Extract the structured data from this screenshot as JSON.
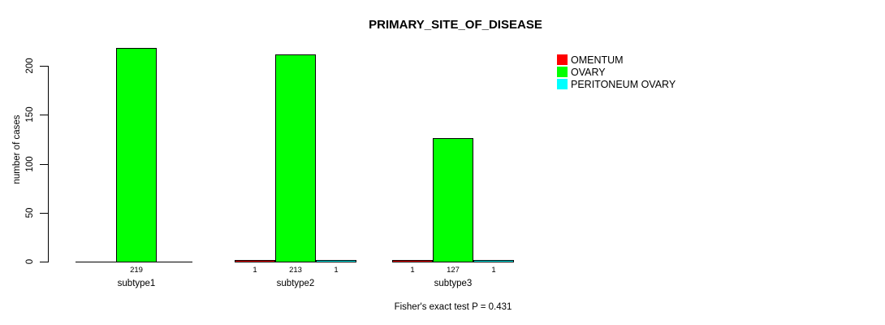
{
  "chart_data": {
    "type": "bar",
    "title": "PRIMARY_SITE_OF_DISEASE",
    "xlabel": "",
    "ylabel": "number of cases",
    "ylim": [
      0,
      200
    ],
    "yticks": [
      0,
      50,
      100,
      150,
      200
    ],
    "grid": false,
    "legend_position": "right",
    "categories": [
      "subtype1",
      "subtype2",
      "subtype3"
    ],
    "series": [
      {
        "name": "OMENTUM",
        "color": "#FF0000",
        "values": [
          0,
          1,
          1
        ]
      },
      {
        "name": "OVARY",
        "color": "#00FF00",
        "values": [
          219,
          213,
          127
        ]
      },
      {
        "name": "PERITONEUM OVARY",
        "color": "#00FFFF",
        "values": [
          0,
          1,
          1
        ]
      }
    ],
    "bar_value_labels_shown_when": "value > 0",
    "annotation": "Fisher's exact test P = 0.431",
    "colors": {
      "background": "#FFFFFF",
      "axis": "#000000",
      "text": "#000000"
    }
  }
}
